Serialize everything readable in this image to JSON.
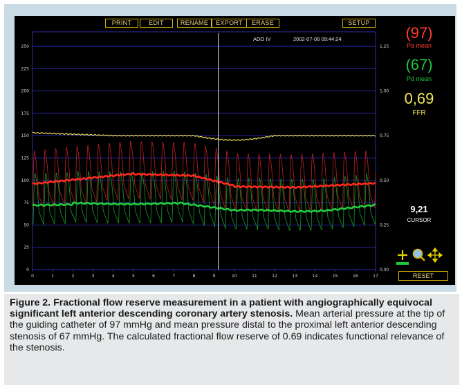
{
  "toolbar": {
    "print": "PRINT",
    "edit": "EDIT",
    "rename": "RENAME",
    "export": "EXPORT",
    "erase": "ERASE",
    "setup": "SETUP"
  },
  "header": {
    "station": "ADO IV",
    "timestamp": "2002-07-08 09:44:24"
  },
  "axes": {
    "left_ticks": [
      "250",
      "225",
      "200",
      "175",
      "150",
      "125",
      "100",
      "75",
      "50",
      "25",
      "0"
    ],
    "right_ticks": [
      "1,25",
      "1,00",
      "0,75",
      "0,50",
      "0,25",
      "0,00"
    ],
    "x_ticks": [
      "0",
      "1",
      "2",
      "3",
      "4",
      "5",
      "6",
      "7",
      "8",
      "9",
      "10",
      "11",
      "12",
      "13",
      "14",
      "15",
      "16",
      "17"
    ]
  },
  "readouts": {
    "pa_value": "(97)",
    "pa_label": "Pa mean",
    "pd_value": "(67)",
    "pd_label": "Pd mean",
    "ffr_value": "0,69",
    "ffr_label": "FFR",
    "cursor_value": "9,21",
    "cursor_label": "CURSOR",
    "reset": "RESET"
  },
  "icons": [
    "plus-icon",
    "magnifier-icon",
    "move-icon"
  ],
  "colors": {
    "pa": "#ff3b30",
    "pd": "#1ec93a",
    "ffr": "#f1e35a",
    "screen_bg": "#000000",
    "grid": "#2c2cb8",
    "frame": "#c9dce6"
  },
  "cursor_time": 9.21,
  "caption": {
    "title": "Figure 2. Fractional flow reserve measurement in a patient with angiographically equivocal significant left anterior descending coronary artery stenosis.",
    "body": " Mean arterial pressure at the tip of the guiding catheter of 97 mmHg and mean pressure distal to the proximal left anterior descending stenosis of 67 mmHg. The calculated fractional flow reserve of 0.69 indicates functional relevance of the stenosis."
  }
}
